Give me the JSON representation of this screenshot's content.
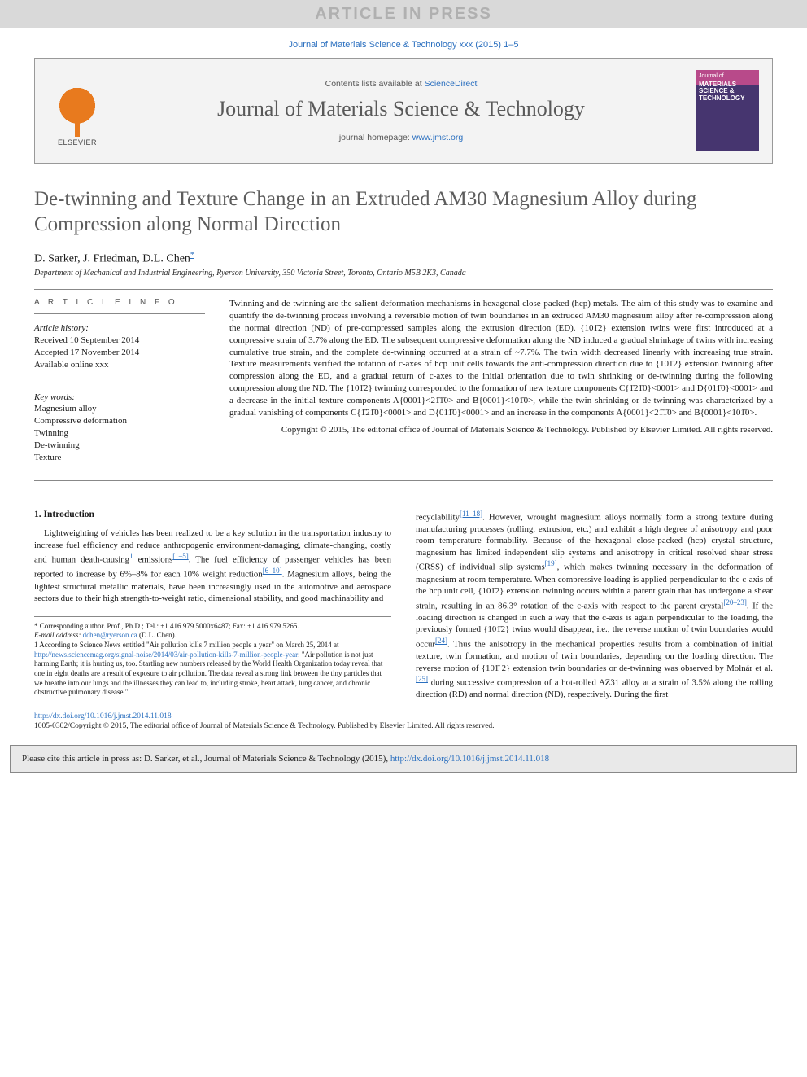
{
  "banner": {
    "text": "ARTICLE IN PRESS"
  },
  "journalRef": "Journal of Materials Science & Technology xxx (2015) 1–5",
  "header": {
    "contents_prefix": "Contents lists available at ",
    "contents_link": "ScienceDirect",
    "journal_name": "Journal of Materials Science & Technology",
    "homepage_prefix": "journal homepage: ",
    "homepage_link": "www.jmst.org",
    "elsevier_label": "ELSEVIER",
    "cover": {
      "line1": "Journal of",
      "line2": "MATERIALS SCIENCE & TECHNOLOGY"
    }
  },
  "title": "De-twinning and Texture Change in an Extruded AM30 Magnesium Alloy during Compression along Normal Direction",
  "authors_html": "D. Sarker, J. Friedman, D.L. Chen",
  "corr_mark": "*",
  "affiliation": "Department of Mechanical and Industrial Engineering, Ryerson University, 350 Victoria Street, Toronto, Ontario M5B 2K3, Canada",
  "article_info": {
    "head": "A R T I C L E   I N F O",
    "history_label": "Article history:",
    "received": "Received 10 September 2014",
    "accepted": "Accepted 17 November 2014",
    "online": "Available online xxx",
    "keywords_label": "Key words:",
    "keywords": [
      "Magnesium alloy",
      "Compressive deformation",
      "Twinning",
      "De-twinning",
      "Texture"
    ]
  },
  "abstract": {
    "text": "Twinning and de-twinning are the salient deformation mechanisms in hexagonal close-packed (hcp) metals. The aim of this study was to examine and quantify the de-twinning process involving a reversible motion of twin boundaries in an extruded AM30 magnesium alloy after re-compression along the normal direction (ND) of pre-compressed samples along the extrusion direction (ED). {101̄2} extension twins were first introduced at a compressive strain of 3.7% along the ED. The subsequent compressive deformation along the ND induced a gradual shrinkage of twins with increasing cumulative true strain, and the complete de-twinning occurred at a strain of ~7.7%. The twin width decreased linearly with increasing true strain. Texture measurements verified the rotation of c-axes of hcp unit cells towards the anti-compression direction due to {101̄2} extension twinning after compression along the ED, and a gradual return of c-axes to the initial orientation due to twin shrinking or de-twinning during the following compression along the ND. The {101̄2} twinning corresponded to the formation of new texture components C{1̄21̄0}<0001> and D{011̄0}<0001> and a decrease in the initial texture components A{0001}<21̄1̄0> and B{0001}<101̄0>, while the twin shrinking or de-twinning was characterized by a gradual vanishing of components C{1̄21̄0}<0001> and D{011̄0}<0001> and an increase in the components A{0001}<21̄1̄0> and B{0001}<101̄0>.",
    "copyright": "Copyright © 2015, The editorial office of Journal of Materials Science & Technology. Published by Elsevier Limited. All rights reserved."
  },
  "section1": {
    "head": "1. Introduction",
    "p1_a": "Lightweighting of vehicles has been realized to be a key solution in the transportation industry to increase fuel efficiency and reduce anthropogenic environment-damaging, climate-changing, costly and human death-causing",
    "p1_fn": "1",
    "p1_b": " emissions",
    "p1_cite1": "[1–5]",
    "p1_c": ". The fuel efficiency of passenger vehicles has been reported to increase by 6%–8% for each 10% weight reduction",
    "p1_cite2": "[6–10]",
    "p1_d": ". Magnesium alloys, being the lightest structural metallic materials, have been increasingly used in the automotive and aerospace sectors due to their high strength-to-weight ratio, dimensional stability, and good machinability and",
    "p2_a": "recyclability",
    "p2_cite1": "[11–18]",
    "p2_b": ". However, wrought magnesium alloys normally form a strong texture during manufacturing processes (rolling, extrusion, etc.) and exhibit a high degree of anisotropy and poor room temperature formability. Because of the hexagonal close-packed (hcp) crystal structure, magnesium has limited independent slip systems and anisotropy in critical resolved shear stress (CRSS) of individual slip systems",
    "p2_cite2": "[19]",
    "p2_c": ", which makes twinning necessary in the deformation of magnesium at room temperature. When compressive loading is applied perpendicular to the c-axis of the hcp unit cell, {101̄2} extension twinning occurs within a parent grain that has undergone a shear strain, resulting in an 86.3° rotation of the c-axis with respect to the parent crystal",
    "p2_cite3": "[20–23]",
    "p2_d": ". If the loading direction is changed in such a way that the c-axis is again perpendicular to the loading, the previously formed {101̄2} twins would disappear, i.e., the reverse motion of twin boundaries would occur",
    "p2_cite4": "[24]",
    "p2_e": ". Thus the anisotropy in the mechanical properties results from a combination of initial texture, twin formation, and motion of twin boundaries, depending on the loading direction. The reverse motion of {101̄ 2} extension twin boundaries or de-twinning was observed by Molnár et al.",
    "p2_cite5": "[25]",
    "p2_f": " during successive compression of a hot-rolled AZ31 alloy at a strain of 3.5% along the rolling direction (RD) and normal direction (ND), respectively. During the first"
  },
  "footnotes": {
    "corr": "* Corresponding author. Prof., Ph.D.; Tel.: +1 416 979 5000x6487; Fax: +1 416 979 5265.",
    "email_label": "E-mail address: ",
    "email": "dchen@ryerson.ca",
    "email_who": " (D.L. Chen).",
    "fn1_a": "1 According to Science News entitled \"Air pollution kills 7 million people a year\" on March 25, 2014 at ",
    "fn1_link": "http://news.sciencemag.org/signal-noise/2014/03/air-pollution-kills-7-million-people-year",
    "fn1_b": ": \"Air pollution is not just harming Earth; it is hurting us, too. Startling new numbers released by the World Health Organization today reveal that one in eight deaths are a result of exposure to air pollution. The data reveal a strong link between the tiny particles that we breathe into our lungs and the illnesses they can lead to, including stroke, heart attack, lung cancer, and chronic obstructive pulmonary disease.\""
  },
  "doi": {
    "url": "http://dx.doi.org/10.1016/j.jmst.2014.11.018"
  },
  "bottom_copyright": "1005-0302/Copyright © 2015, The editorial office of Journal of Materials Science & Technology. Published by Elsevier Limited. All rights reserved.",
  "citebox": {
    "prefix": "Please cite this article in press as: D. Sarker, et al., Journal of Materials Science & Technology (2015), ",
    "link": "http://dx.doi.org/10.1016/j.jmst.2014.11.018"
  },
  "colors": {
    "link": "#2a6fbf",
    "banner_bg": "#d9d9d9",
    "banner_fg": "#b0b0b0",
    "header_bg": "#f3f3f3",
    "citebox_bg": "#e9e9e9"
  }
}
